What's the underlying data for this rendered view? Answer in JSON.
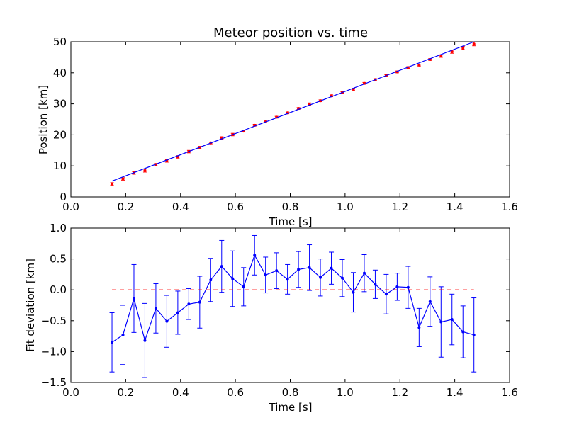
{
  "chart_data": [
    {
      "type": "scatter",
      "title": "Meteor position vs. time",
      "xlabel": "Time [s]",
      "ylabel": "Position [km]",
      "xlim": [
        0.0,
        1.6
      ],
      "ylim": [
        0,
        50
      ],
      "xticks": [
        "0.0",
        "0.2",
        "0.4",
        "0.6",
        "0.8",
        "1.0",
        "1.2",
        "1.4",
        "1.6"
      ],
      "yticks": [
        "0",
        "10",
        "20",
        "30",
        "40",
        "50"
      ],
      "grid": false,
      "x": [
        0.15,
        0.19,
        0.23,
        0.27,
        0.31,
        0.35,
        0.39,
        0.43,
        0.47,
        0.51,
        0.55,
        0.59,
        0.63,
        0.67,
        0.71,
        0.75,
        0.79,
        0.83,
        0.87,
        0.91,
        0.95,
        0.99,
        1.03,
        1.07,
        1.11,
        1.15,
        1.19,
        1.23,
        1.27,
        1.31,
        1.35,
        1.39,
        1.43,
        1.47
      ],
      "series": [
        {
          "kind": "data",
          "color": "#ff0000",
          "marker": "point",
          "values": [
            4.2,
            5.8,
            7.7,
            8.5,
            10.4,
            11.6,
            12.9,
            14.6,
            15.9,
            17.4,
            19.0,
            20.1,
            21.2,
            23.1,
            24.2,
            25.7,
            27.1,
            28.5,
            29.9,
            31.0,
            32.6,
            33.6,
            34.7,
            36.6,
            37.8,
            39.1,
            40.3,
            41.7,
            42.5,
            44.3,
            45.4,
            46.8,
            48.0,
            49.3
          ],
          "errors": [
            0.4,
            0.4,
            0.4,
            0.5,
            0.4,
            0.4,
            0.4,
            0.4,
            0.4,
            0.3,
            0.4,
            0.4,
            0.3,
            0.3,
            0.3,
            0.3,
            0.3,
            0.3,
            0.4,
            0.3,
            0.3,
            0.3,
            0.3,
            0.3,
            0.3,
            0.3,
            0.3,
            0.3,
            0.3,
            0.3,
            0.4,
            0.5,
            0.5,
            0.6
          ]
        },
        {
          "kind": "fit",
          "color": "#0000ff",
          "type": "line",
          "x": [
            0.15,
            1.47
          ],
          "values": [
            5.1,
            50.0
          ]
        }
      ]
    },
    {
      "type": "line",
      "xlabel": "Time [s]",
      "ylabel": "Fit deviation [km]",
      "xlim": [
        0.0,
        1.6
      ],
      "ylim": [
        -1.5,
        1.0
      ],
      "xticks": [
        "0.0",
        "0.2",
        "0.4",
        "0.6",
        "0.8",
        "1.0",
        "1.2",
        "1.4",
        "1.6"
      ],
      "yticks": [
        "1.0",
        "0.5",
        "0.0",
        "−0.5",
        "−1.0",
        "−1.5"
      ],
      "grid": false,
      "x": [
        0.15,
        0.19,
        0.23,
        0.27,
        0.31,
        0.35,
        0.39,
        0.43,
        0.47,
        0.51,
        0.55,
        0.59,
        0.63,
        0.67,
        0.71,
        0.75,
        0.79,
        0.83,
        0.87,
        0.91,
        0.95,
        0.99,
        1.03,
        1.07,
        1.11,
        1.15,
        1.19,
        1.23,
        1.27,
        1.31,
        1.35,
        1.39,
        1.43,
        1.47
      ],
      "series": [
        {
          "kind": "deviation",
          "color": "#0000ff",
          "marker": "point",
          "values": [
            -0.85,
            -0.73,
            -0.14,
            -0.82,
            -0.3,
            -0.51,
            -0.37,
            -0.23,
            -0.2,
            0.16,
            0.38,
            0.18,
            0.05,
            0.56,
            0.24,
            0.31,
            0.17,
            0.33,
            0.36,
            0.2,
            0.35,
            0.19,
            -0.04,
            0.27,
            0.09,
            -0.07,
            0.05,
            0.04,
            -0.61,
            -0.19,
            -0.52,
            -0.48,
            -0.68,
            -0.73
          ],
          "errors": [
            0.48,
            0.48,
            0.55,
            0.6,
            0.4,
            0.42,
            0.35,
            0.25,
            0.42,
            0.35,
            0.42,
            0.45,
            0.31,
            0.32,
            0.29,
            0.29,
            0.24,
            0.29,
            0.37,
            0.3,
            0.26,
            0.3,
            0.32,
            0.3,
            0.23,
            0.32,
            0.22,
            0.34,
            0.31,
            0.4,
            0.57,
            0.41,
            0.42,
            0.6
          ]
        },
        {
          "kind": "zero",
          "color": "#ff0000",
          "type": "dashed-line",
          "x": [
            0.15,
            1.47
          ],
          "values": [
            0.0,
            0.0
          ]
        }
      ]
    }
  ]
}
